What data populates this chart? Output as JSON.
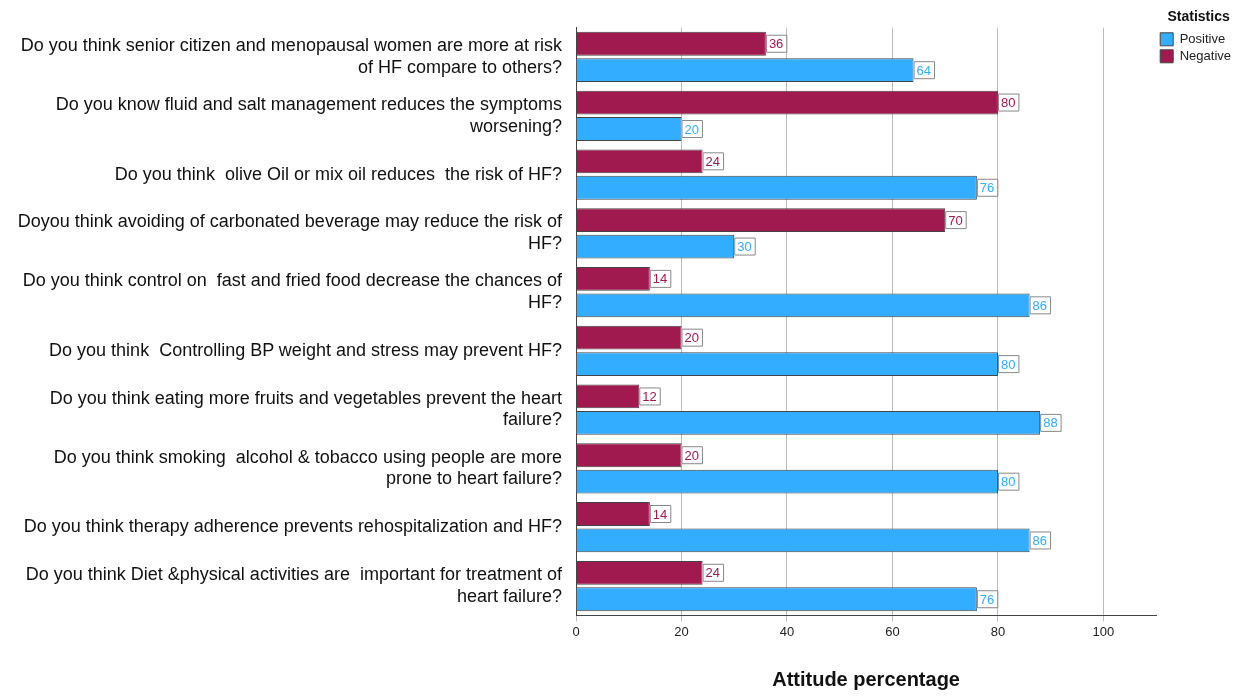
{
  "chart_data": {
    "type": "bar",
    "orientation": "horizontal",
    "xlabel": "Attitude percentage",
    "legend_title": "Statistics",
    "legend": "top right",
    "grid": "x",
    "data_labels": true,
    "categories": [
      "Do you think senior citizen and menopausal women are more at risk of HF compare to others?",
      "Do you know fluid and salt management reduces the symptoms worsening?",
      "Do you think  olive Oil or mix oil reduces  the risk of HF?",
      "Doyou think avoiding of carbonated beverage may reduce the risk of HF?",
      "Do you think control on  fast and fried food decrease the chances of HF?",
      "Do you think  Controlling BP weight and stress may prevent HF?",
      "Do you think eating more fruits and vegetables prevent the heart failure?",
      "Do you think smoking  alcohol & tobacco using people are more prone to heart failure?",
      "Do you think therapy adherence prevents rehospitalization and HF?",
      "Do you think Diet &physical activities are  important for treatment of heart failure?"
    ],
    "series": [
      {
        "name": "Positive",
        "color": "#33adff",
        "values": [
          64,
          20,
          76,
          30,
          86,
          80,
          88,
          80,
          86,
          76
        ]
      },
      {
        "name": "Negative",
        "color": "#a0194f",
        "values": [
          36,
          80,
          24,
          70,
          14,
          20,
          12,
          20,
          14,
          24
        ]
      }
    ],
    "xlim": [
      0,
      110
    ],
    "xticks": [
      0,
      20,
      40,
      60,
      80,
      100
    ]
  }
}
